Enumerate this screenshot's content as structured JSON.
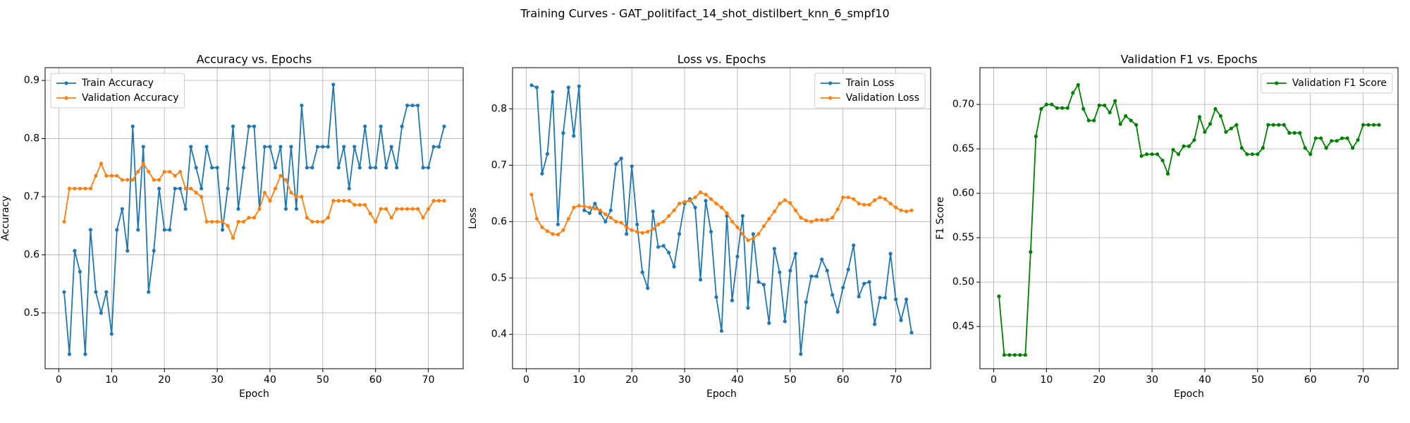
{
  "title": "Training Curves - GAT_politifact_14_shot_distilbert_knn_6_smpf10",
  "chart_data": [
    {
      "type": "line",
      "title": "Accuracy vs. Epochs",
      "xlabel": "Epoch",
      "ylabel": "Accuracy",
      "legend": "upper left",
      "grid": true,
      "xlim": [
        -2.6,
        76.6
      ],
      "ylim": [
        0.404,
        0.922
      ],
      "xticks": [
        0,
        10,
        20,
        30,
        40,
        50,
        60,
        70
      ],
      "yticks": [
        0.5,
        0.6,
        0.7,
        0.8,
        0.9
      ],
      "x": [
        1,
        2,
        3,
        4,
        5,
        6,
        7,
        8,
        9,
        10,
        11,
        12,
        13,
        14,
        15,
        16,
        17,
        18,
        19,
        20,
        21,
        22,
        23,
        24,
        25,
        26,
        27,
        28,
        29,
        30,
        31,
        32,
        33,
        34,
        35,
        36,
        37,
        38,
        39,
        40,
        41,
        42,
        43,
        44,
        45,
        46,
        47,
        48,
        49,
        50,
        51,
        52,
        53,
        54,
        55,
        56,
        57,
        58,
        59,
        60,
        61,
        62,
        63,
        64,
        65,
        66,
        67,
        68,
        69,
        70,
        71,
        72,
        73
      ],
      "series": [
        {
          "name": "Train Accuracy",
          "color": "#1f77b4",
          "values": [
            0.536,
            0.429,
            0.607,
            0.571,
            0.429,
            0.643,
            0.536,
            0.5,
            0.536,
            0.464,
            0.643,
            0.679,
            0.607,
            0.821,
            0.643,
            0.786,
            0.536,
            0.607,
            0.714,
            0.643,
            0.643,
            0.714,
            0.714,
            0.679,
            0.786,
            0.75,
            0.714,
            0.786,
            0.75,
            0.75,
            0.643,
            0.714,
            0.821,
            0.679,
            0.75,
            0.821,
            0.821,
            0.679,
            0.786,
            0.786,
            0.75,
            0.786,
            0.679,
            0.786,
            0.679,
            0.857,
            0.75,
            0.75,
            0.786,
            0.786,
            0.786,
            0.893,
            0.75,
            0.786,
            0.714,
            0.786,
            0.75,
            0.821,
            0.75,
            0.75,
            0.821,
            0.75,
            0.786,
            0.75,
            0.821,
            0.857,
            0.857,
            0.857,
            0.75,
            0.75,
            0.786,
            0.786,
            0.821
          ]
        },
        {
          "name": "Validation Accuracy",
          "color": "#ff7f0e",
          "values": [
            0.657,
            0.714,
            0.714,
            0.714,
            0.714,
            0.714,
            0.736,
            0.757,
            0.736,
            0.736,
            0.736,
            0.729,
            0.729,
            0.729,
            0.743,
            0.757,
            0.743,
            0.729,
            0.729,
            0.743,
            0.743,
            0.736,
            0.743,
            0.714,
            0.714,
            0.707,
            0.7,
            0.657,
            0.657,
            0.657,
            0.657,
            0.65,
            0.629,
            0.657,
            0.657,
            0.664,
            0.664,
            0.679,
            0.707,
            0.693,
            0.714,
            0.736,
            0.729,
            0.707,
            0.7,
            0.7,
            0.664,
            0.657,
            0.657,
            0.657,
            0.664,
            0.693,
            0.693,
            0.693,
            0.693,
            0.686,
            0.686,
            0.686,
            0.671,
            0.657,
            0.679,
            0.679,
            0.664,
            0.679,
            0.679,
            0.679,
            0.679,
            0.679,
            0.664,
            0.679,
            0.693,
            0.693,
            0.693
          ]
        }
      ]
    },
    {
      "type": "line",
      "title": "Loss vs. Epochs",
      "xlabel": "Epoch",
      "ylabel": "Loss",
      "legend": "upper right",
      "grid": true,
      "xlim": [
        -2.6,
        76.6
      ],
      "ylim": [
        0.339,
        0.873
      ],
      "xticks": [
        0,
        10,
        20,
        30,
        40,
        50,
        60,
        70
      ],
      "yticks": [
        0.4,
        0.5,
        0.6,
        0.7,
        0.8
      ],
      "x": [
        1,
        2,
        3,
        4,
        5,
        6,
        7,
        8,
        9,
        10,
        11,
        12,
        13,
        14,
        15,
        16,
        17,
        18,
        19,
        20,
        21,
        22,
        23,
        24,
        25,
        26,
        27,
        28,
        29,
        30,
        31,
        32,
        33,
        34,
        35,
        36,
        37,
        38,
        39,
        40,
        41,
        42,
        43,
        44,
        45,
        46,
        47,
        48,
        49,
        50,
        51,
        52,
        53,
        54,
        55,
        56,
        57,
        58,
        59,
        60,
        61,
        62,
        63,
        64,
        65,
        66,
        67,
        68,
        69,
        70,
        71,
        72,
        73
      ],
      "series": [
        {
          "name": "Train Loss",
          "color": "#1f77b4",
          "values": [
            0.842,
            0.838,
            0.685,
            0.72,
            0.83,
            0.595,
            0.757,
            0.838,
            0.752,
            0.84,
            0.62,
            0.615,
            0.632,
            0.615,
            0.6,
            0.62,
            0.702,
            0.712,
            0.578,
            0.698,
            0.595,
            0.51,
            0.482,
            0.618,
            0.555,
            0.557,
            0.545,
            0.52,
            0.578,
            0.632,
            0.64,
            0.625,
            0.497,
            0.637,
            0.582,
            0.466,
            0.406,
            0.61,
            0.46,
            0.538,
            0.61,
            0.447,
            0.578,
            0.493,
            0.488,
            0.42,
            0.552,
            0.51,
            0.423,
            0.513,
            0.543,
            0.365,
            0.457,
            0.503,
            0.503,
            0.533,
            0.513,
            0.47,
            0.44,
            0.483,
            0.515,
            0.558,
            0.467,
            0.49,
            0.493,
            0.418,
            0.465,
            0.465,
            0.543,
            0.462,
            0.425,
            0.462,
            0.403
          ]
        },
        {
          "name": "Validation Loss",
          "color": "#ff7f0e",
          "values": [
            0.648,
            0.605,
            0.59,
            0.583,
            0.578,
            0.577,
            0.585,
            0.605,
            0.625,
            0.628,
            0.627,
            0.625,
            0.623,
            0.62,
            0.613,
            0.607,
            0.6,
            0.598,
            0.59,
            0.585,
            0.582,
            0.58,
            0.582,
            0.587,
            0.595,
            0.6,
            0.61,
            0.62,
            0.632,
            0.635,
            0.637,
            0.643,
            0.652,
            0.648,
            0.64,
            0.632,
            0.625,
            0.615,
            0.6,
            0.59,
            0.578,
            0.567,
            0.57,
            0.578,
            0.592,
            0.605,
            0.618,
            0.632,
            0.638,
            0.633,
            0.62,
            0.607,
            0.602,
            0.6,
            0.603,
            0.603,
            0.603,
            0.607,
            0.622,
            0.643,
            0.643,
            0.64,
            0.632,
            0.63,
            0.63,
            0.638,
            0.643,
            0.64,
            0.632,
            0.625,
            0.62,
            0.618,
            0.62
          ]
        }
      ]
    },
    {
      "type": "line",
      "title": "Validation F1 vs. Epochs",
      "xlabel": "Epoch",
      "ylabel": "F1 Score",
      "legend": "upper right",
      "grid": true,
      "xlim": [
        -2.6,
        76.6
      ],
      "ylim": [
        0.4025,
        0.7414
      ],
      "xticks": [
        0,
        10,
        20,
        30,
        40,
        50,
        60,
        70
      ],
      "yticks": [
        0.45,
        {
          "value": 0.5,
          "label": "0.50"
        },
        0.55,
        {
          "value": 0.6,
          "label": "0.60"
        },
        0.65,
        {
          "value": 0.7,
          "label": "0.70"
        }
      ],
      "x": [
        1,
        2,
        3,
        4,
        5,
        6,
        7,
        8,
        9,
        10,
        11,
        12,
        13,
        14,
        15,
        16,
        17,
        18,
        19,
        20,
        21,
        22,
        23,
        24,
        25,
        26,
        27,
        28,
        29,
        30,
        31,
        32,
        33,
        34,
        35,
        36,
        37,
        38,
        39,
        40,
        41,
        42,
        43,
        44,
        45,
        46,
        47,
        48,
        49,
        50,
        51,
        52,
        53,
        54,
        55,
        56,
        57,
        58,
        59,
        60,
        61,
        62,
        63,
        64,
        65,
        66,
        67,
        68,
        69,
        70,
        71,
        72,
        73
      ],
      "series": [
        {
          "name": "Validation F1 Score",
          "color": "#008000",
          "values": [
            0.484,
            0.418,
            0.418,
            0.418,
            0.418,
            0.418,
            0.534,
            0.664,
            0.695,
            0.7,
            0.7,
            0.696,
            0.696,
            0.696,
            0.713,
            0.722,
            0.695,
            0.682,
            0.682,
            0.699,
            0.699,
            0.691,
            0.704,
            0.678,
            0.687,
            0.682,
            0.677,
            0.642,
            0.644,
            0.644,
            0.644,
            0.637,
            0.622,
            0.649,
            0.644,
            0.653,
            0.653,
            0.66,
            0.686,
            0.669,
            0.678,
            0.695,
            0.687,
            0.669,
            0.673,
            0.677,
            0.651,
            0.644,
            0.644,
            0.644,
            0.651,
            0.677,
            0.677,
            0.677,
            0.677,
            0.668,
            0.668,
            0.668,
            0.651,
            0.644,
            0.662,
            0.662,
            0.651,
            0.659,
            0.659,
            0.662,
            0.662,
            0.651,
            0.66,
            0.677,
            0.677,
            0.677,
            0.677
          ]
        }
      ]
    }
  ]
}
